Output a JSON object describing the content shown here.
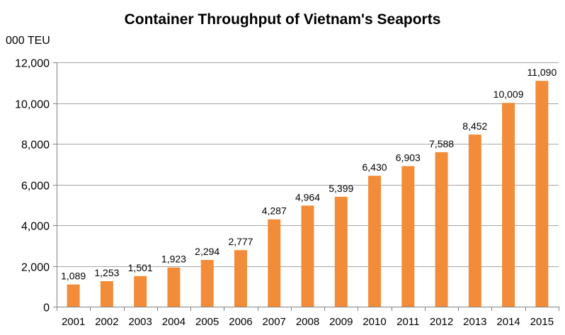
{
  "chart_data": {
    "type": "bar",
    "title": "Container Throughput of Vietnam's Seaports",
    "ylabel": "000 TEU",
    "xlabel": "",
    "categories": [
      "2001",
      "2002",
      "2003",
      "2004",
      "2005",
      "2006",
      "2007",
      "2008",
      "2009",
      "2010",
      "2011",
      "2012",
      "2013",
      "2014",
      "2015"
    ],
    "values": [
      1089,
      1253,
      1501,
      1923,
      2294,
      2777,
      4287,
      4964,
      5399,
      6430,
      6903,
      7588,
      8452,
      10009,
      11090
    ],
    "value_labels": [
      "1,089",
      "1,253",
      "1,501",
      "1,923",
      "2,294",
      "2,777",
      "4,287",
      "4,964",
      "5,399",
      "6,430",
      "6,903",
      "7,588",
      "8,452",
      "10,009",
      "11,090"
    ],
    "ylim": [
      0,
      12000
    ],
    "yticks": [
      0,
      2000,
      4000,
      6000,
      8000,
      10000,
      12000
    ],
    "ytick_labels": [
      "0",
      "2,000",
      "4,000",
      "6,000",
      "8,000",
      "10,000",
      "12,000"
    ],
    "grid": true,
    "legend": "none",
    "bar_color": "#F28C38",
    "grid_color": "#A6A6A6",
    "axis_color": "#808080"
  }
}
